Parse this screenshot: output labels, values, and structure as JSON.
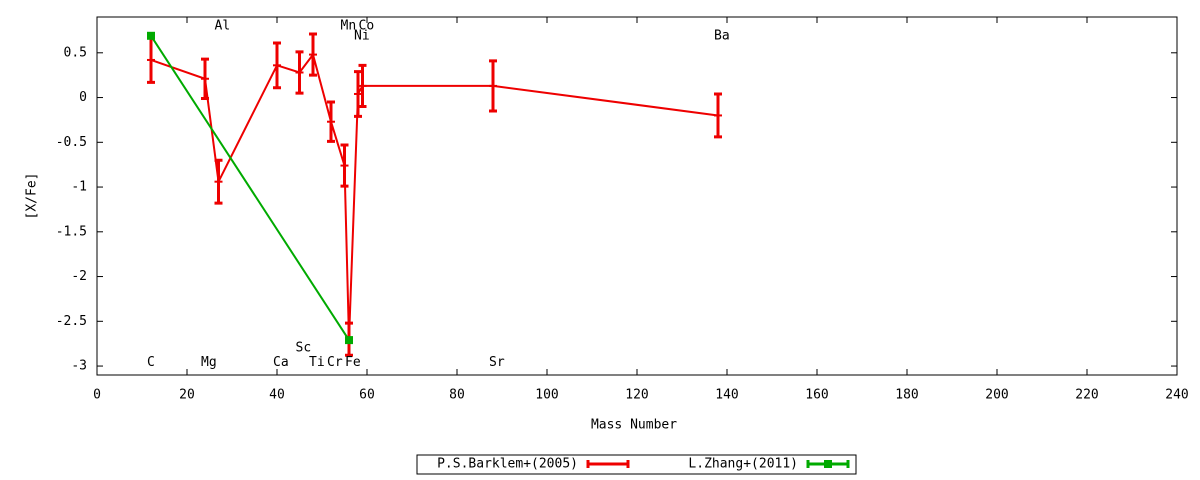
{
  "chart_data": {
    "type": "line",
    "x_label": "Mass Number",
    "y_label": "[X/Fe]",
    "xlim": [
      0,
      240
    ],
    "ylim": [
      -3.1,
      0.9
    ],
    "xticks": [
      0,
      20,
      40,
      60,
      80,
      100,
      120,
      140,
      160,
      180,
      200,
      220,
      240
    ],
    "yticks": [
      -3,
      -2.5,
      -2,
      -1.5,
      -1,
      -0.5,
      0,
      0.5
    ],
    "legend": "bottom",
    "series": [
      {
        "name": "P.S.Barklem+(2005)",
        "color": "#ee0000",
        "x": [
          12,
          24,
          27,
          40,
          45,
          48,
          52,
          55,
          56,
          58,
          59,
          88,
          138
        ],
        "values": [
          0.42,
          0.21,
          -0.94,
          0.36,
          0.28,
          0.48,
          -0.27,
          -0.76,
          -2.7,
          0.04,
          0.13,
          0.13,
          -0.2
        ],
        "errors": [
          0.25,
          0.22,
          0.24,
          0.25,
          0.23,
          0.23,
          0.22,
          0.23,
          0.18,
          0.25,
          0.23,
          0.28,
          0.24
        ]
      },
      {
        "name": "L.Zhang+(2011)",
        "color": "#00aa00",
        "x": [
          12,
          56
        ],
        "values": [
          0.69,
          -2.71
        ]
      }
    ],
    "annotations": [
      {
        "text": "C",
        "x": 12,
        "y": -2.96
      },
      {
        "text": "Mg",
        "x": 24,
        "y": -2.96
      },
      {
        "text": "Al",
        "x": 27,
        "y": 0.8
      },
      {
        "text": "Ca",
        "x": 40,
        "y": -2.96
      },
      {
        "text": "Sc",
        "x": 45,
        "y": -2.8
      },
      {
        "text": "Ti",
        "x": 48,
        "y": -2.96
      },
      {
        "text": "Cr",
        "x": 52,
        "y": -2.96
      },
      {
        "text": "Mn",
        "x": 55,
        "y": 0.8
      },
      {
        "text": "Fe",
        "x": 56,
        "y": -2.96
      },
      {
        "text": "Ni",
        "x": 58,
        "y": 0.69
      },
      {
        "text": "Co",
        "x": 59,
        "y": 0.8
      },
      {
        "text": "Sr",
        "x": 88,
        "y": -2.96
      },
      {
        "text": "Ba",
        "x": 138,
        "y": 0.69
      }
    ]
  }
}
